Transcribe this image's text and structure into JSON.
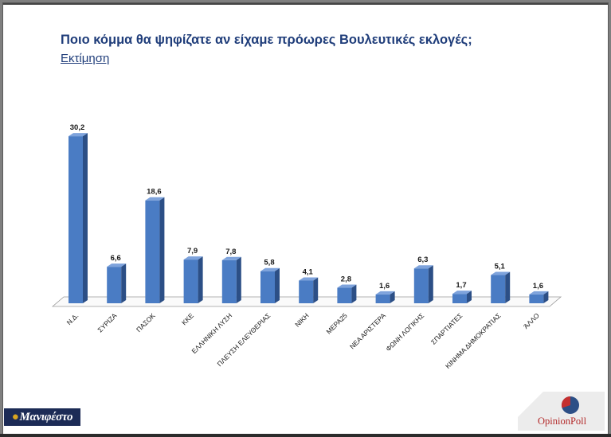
{
  "header": {
    "title": "Ποιο κόμμα θα ψηφίζατε αν είχαμε πρόωρες Βουλευτικές εκλογές;",
    "subtitle": "Εκτίμηση"
  },
  "logos": {
    "left_text": "Μανιφέστο",
    "right_text": "OpinionPoll"
  },
  "colors": {
    "bar_front": "#4a7cc4",
    "bar_side": "#2c4f86",
    "bar_top": "#7ea3dc",
    "title": "#1f3d7a",
    "logo_left_bg": "#1c2b56",
    "logo_right_text": "#b32a2a"
  },
  "chart_data": {
    "type": "bar",
    "style": "3d-column",
    "title": "Ποιο κόμμα θα ψηφίζατε αν είχαμε πρόωρες Βουλευτικές εκλογές;",
    "subtitle": "Εκτίμηση",
    "categories": [
      "Ν.Δ.",
      "ΣΥΡΙΖΑ",
      "ΠΑΣΟΚ",
      "ΚΚΕ",
      "ΕΛΛΗΝΙΚΗ ΛΥΣΗ",
      "ΠΛΕΥΣΗ ΕΛΕΥΘΕΡΙΑΣ",
      "ΝΙΚΗ",
      "ΜΕΡΑ25",
      "ΝΕΑ ΑΡΙΣΤΕΡΑ",
      "ΦΩΝΗ ΛΟΓΙΚΗΣ",
      "ΣΠΑΡΤΙΑΤΕΣ",
      "ΚΙΝΗΜΑ ΔΗΜΟΚΡΑΤΙΑΣ",
      "ΆΛΛΟ"
    ],
    "values": [
      30.2,
      6.6,
      18.6,
      7.9,
      7.8,
      5.8,
      4.1,
      2.8,
      1.6,
      6.3,
      1.7,
      5.1,
      1.6
    ],
    "value_labels": [
      "30,2",
      "6,6",
      "18,6",
      "7,9",
      "7,8",
      "5,8",
      "4,1",
      "2,8",
      "1,6",
      "6,3",
      "1,7",
      "5,1",
      "1,6"
    ],
    "grid": false,
    "legend": "none"
  }
}
